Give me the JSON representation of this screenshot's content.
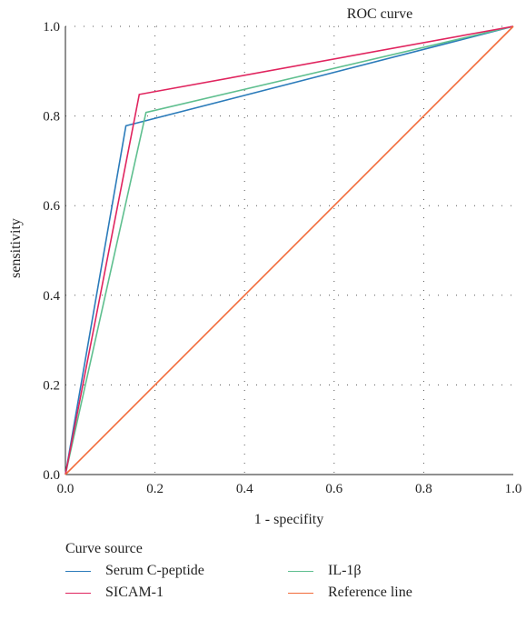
{
  "chart_data": {
    "type": "line",
    "title": "ROC curve",
    "xlabel": "1 - specifity",
    "ylabel": "sensitivity",
    "xlim": [
      0,
      1
    ],
    "ylim": [
      0,
      1
    ],
    "x_ticks": [
      "0.0",
      "0.2",
      "0.4",
      "0.6",
      "0.8",
      "1.0"
    ],
    "y_ticks": [
      "0.0",
      "0.2",
      "0.4",
      "0.6",
      "0.8",
      "1.0"
    ],
    "grid": true,
    "legend_title": "Curve source",
    "legend_position": "bottom",
    "series": [
      {
        "name": "Serum C-peptide",
        "color": "#2b7bba",
        "x": [
          0,
          0.135,
          1
        ],
        "y": [
          0,
          0.778,
          1
        ]
      },
      {
        "name": "IL-1β",
        "color": "#5fbf8f",
        "x": [
          0,
          0.18,
          1
        ],
        "y": [
          0,
          0.808,
          1
        ]
      },
      {
        "name": "SICAM-1",
        "color": "#e0245e",
        "x": [
          0,
          0.165,
          1
        ],
        "y": [
          0,
          0.848,
          1
        ]
      },
      {
        "name": "Reference line",
        "color": "#f26b3a",
        "x": [
          0,
          1
        ],
        "y": [
          0,
          1
        ]
      }
    ]
  }
}
